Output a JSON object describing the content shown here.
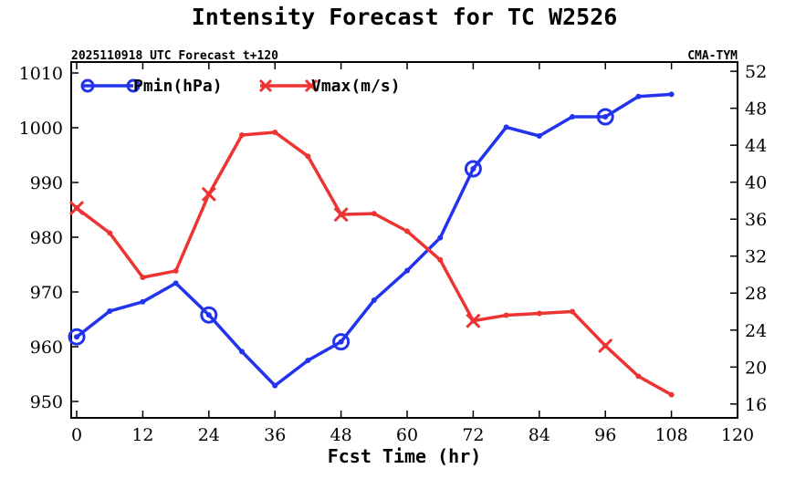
{
  "chart_data": {
    "type": "line",
    "title": "Intensity Forecast for TC W2526",
    "subtitle_left": "2025110918 UTC Forecast t+120",
    "subtitle_right": "CMA-TYM",
    "xlabel": "Fcst Time (hr)",
    "xlim": [
      -1,
      120
    ],
    "x_ticks": [
      0,
      12,
      24,
      36,
      48,
      60,
      72,
      84,
      96,
      108,
      120
    ],
    "y_left_lim": [
      947,
      1012
    ],
    "y_left_ticks": [
      950,
      960,
      970,
      980,
      990,
      1000,
      1010
    ],
    "y_right_lim": [
      14.5,
      53
    ],
    "y_right_ticks": [
      16,
      20,
      24,
      28,
      32,
      36,
      40,
      44,
      48,
      52
    ],
    "x": [
      0,
      6,
      12,
      18,
      24,
      30,
      36,
      42,
      48,
      54,
      60,
      66,
      72,
      78,
      84,
      90,
      96,
      102,
      108
    ],
    "series": [
      {
        "name": "Pmin(hPa)",
        "axis": "left",
        "color": "#2233ee",
        "marker": "circle",
        "marker_every": 4,
        "values": [
          961.8,
          966.5,
          968.2,
          971.6,
          965.8,
          959.1,
          952.9,
          957.5,
          960.9,
          968.5,
          973.9,
          979.9,
          992.5,
          1000.1,
          998.5,
          1002.0,
          1002.0,
          1005.7,
          1006.1
        ]
      },
      {
        "name": "Vmax(m/s)",
        "axis": "right",
        "color": "#ee3333",
        "marker": "x",
        "marker_every": 4,
        "values": [
          37.2,
          34.5,
          29.7,
          30.4,
          38.7,
          45.1,
          45.4,
          42.8,
          36.5,
          36.6,
          34.7,
          31.6,
          25.0,
          25.6,
          25.8,
          26.0,
          22.3,
          19.0,
          17.0
        ]
      }
    ]
  }
}
